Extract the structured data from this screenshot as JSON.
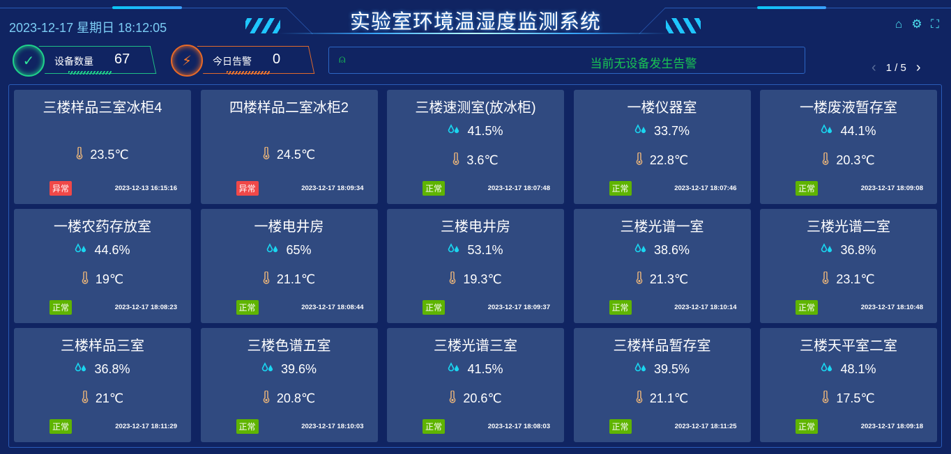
{
  "header": {
    "datetime": "2023-12-17 星期日 18:12:05",
    "title": "实验室环境温湿度监测系统"
  },
  "stats": {
    "device_label": "设备数量",
    "device_count": "67",
    "alarm_label": "今日告警",
    "alarm_count": "0"
  },
  "alarm_bar": {
    "message": "当前无设备发生告警"
  },
  "pager": {
    "text": "1 / 5"
  },
  "colors": {
    "normal": "#5fb400",
    "abnormal": "#f04848",
    "humidity": "#1ad6f0",
    "temp": "#e5b27a",
    "alarm_msg": "#19c454"
  },
  "cards": [
    {
      "name": "三楼样品三室冰柜4",
      "humidity": null,
      "temp": "23.5℃",
      "status": "异常",
      "time": "2023-12-13 16:15:16"
    },
    {
      "name": "四楼样品二室冰柜2",
      "humidity": null,
      "temp": "24.5℃",
      "status": "异常",
      "time": "2023-12-17 18:09:34"
    },
    {
      "name": "三楼速测室(放冰柜)",
      "humidity": "41.5%",
      "temp": "3.6℃",
      "status": "正常",
      "time": "2023-12-17 18:07:48"
    },
    {
      "name": "一楼仪器室",
      "humidity": "33.7%",
      "temp": "22.8℃",
      "status": "正常",
      "time": "2023-12-17 18:07:46"
    },
    {
      "name": "一楼废液暂存室",
      "humidity": "44.1%",
      "temp": "20.3℃",
      "status": "正常",
      "time": "2023-12-17 18:09:08"
    },
    {
      "name": "一楼农药存放室",
      "humidity": "44.6%",
      "temp": "19℃",
      "status": "正常",
      "time": "2023-12-17 18:08:23"
    },
    {
      "name": "一楼电井房",
      "humidity": "65%",
      "temp": "21.1℃",
      "status": "正常",
      "time": "2023-12-17 18:08:44"
    },
    {
      "name": "三楼电井房",
      "humidity": "53.1%",
      "temp": "19.3℃",
      "status": "正常",
      "time": "2023-12-17 18:09:37"
    },
    {
      "name": "三楼光谱一室",
      "humidity": "38.6%",
      "temp": "21.3℃",
      "status": "正常",
      "time": "2023-12-17 18:10:14"
    },
    {
      "name": "三楼光谱二室",
      "humidity": "36.8%",
      "temp": "23.1℃",
      "status": "正常",
      "time": "2023-12-17 18:10:48"
    },
    {
      "name": "三楼样品三室",
      "humidity": "36.8%",
      "temp": "21℃",
      "status": "正常",
      "time": "2023-12-17 18:11:29"
    },
    {
      "name": "三楼色谱五室",
      "humidity": "39.6%",
      "temp": "20.8℃",
      "status": "正常",
      "time": "2023-12-17 18:10:03"
    },
    {
      "name": "三楼光谱三室",
      "humidity": "41.5%",
      "temp": "20.6℃",
      "status": "正常",
      "time": "2023-12-17 18:08:03"
    },
    {
      "name": "三楼样品暂存室",
      "humidity": "39.5%",
      "temp": "21.1℃",
      "status": "正常",
      "time": "2023-12-17 18:11:25"
    },
    {
      "name": "三楼天平室二室",
      "humidity": "48.1%",
      "temp": "17.5℃",
      "status": "正常",
      "time": "2023-12-17 18:09:18"
    }
  ]
}
